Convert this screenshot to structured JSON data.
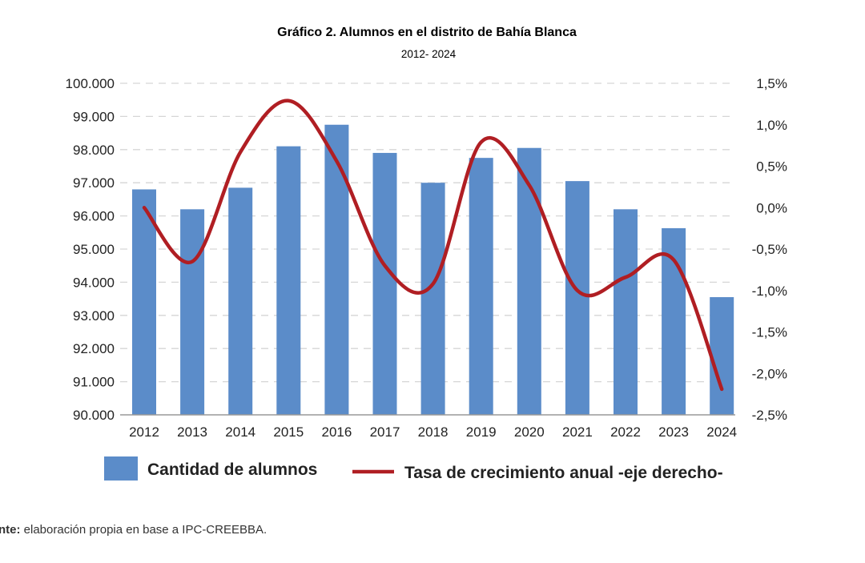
{
  "chart_data": {
    "type": "bar",
    "title": "Gráfico 2. Alumnos en el distrito de Bahía Blanca",
    "subtitle": "2012- 2024",
    "categories": [
      "2012",
      "2013",
      "2014",
      "2015",
      "2016",
      "2017",
      "2018",
      "2019",
      "2020",
      "2021",
      "2022",
      "2023",
      "2024"
    ],
    "series": [
      {
        "name": "Cantidad de alumnos",
        "type": "bar",
        "axis": "left",
        "color": "#5b8cc9",
        "values": [
          96800,
          96200,
          96850,
          98100,
          98750,
          97900,
          97000,
          97750,
          98050,
          97050,
          96200,
          95630,
          93550
        ]
      },
      {
        "name": "Tasa de crecimiento anual -eje derecho-",
        "type": "line",
        "axis": "right",
        "color": "#b01e23",
        "values": [
          0.0,
          -0.65,
          0.67,
          1.29,
          0.56,
          -0.7,
          -0.92,
          0.79,
          0.27,
          -1.0,
          -0.84,
          -0.63,
          -2.19
        ]
      }
    ],
    "left_axis": {
      "ylim": [
        90000,
        100000
      ],
      "ticks": [
        "100.000",
        "99.000",
        "98.000",
        "97.000",
        "96.000",
        "95.000",
        "94.000",
        "93.000",
        "92.000",
        "91.000",
        "90.000"
      ]
    },
    "right_axis": {
      "ylim": [
        -2.5,
        1.5
      ],
      "ticks": [
        "1,5%",
        "1,0%",
        "0,5%",
        "0,0%",
        "-0,5%",
        "-1,0%",
        "-1,5%",
        "-2,0%",
        "-2,5%"
      ]
    },
    "grid": true,
    "legend_position": "bottom"
  },
  "source": {
    "label": "nte:",
    "text": " elaboración propia en base a IPC-CREEBBA."
  }
}
